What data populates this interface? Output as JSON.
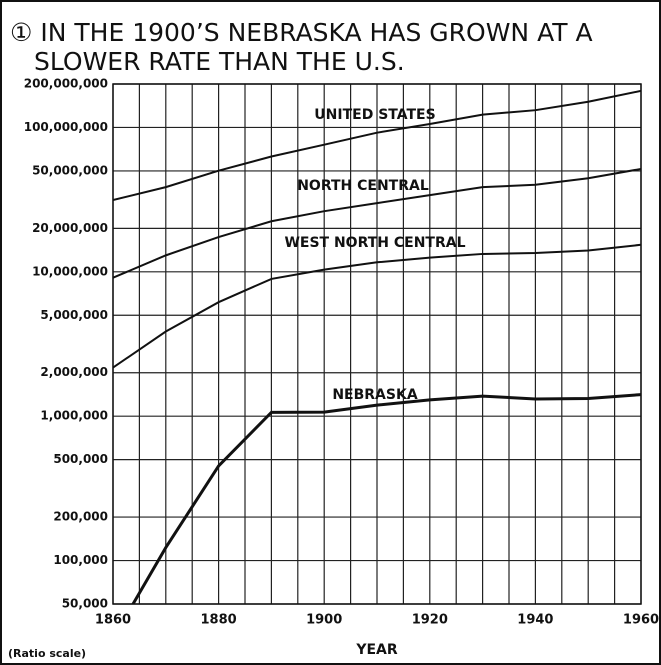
{
  "chart_data": {
    "type": "line",
    "title": [
      "① IN THE 1900’S NEBRASKA HAS GROWN AT A",
      "SLOWER RATE THAN THE U.S."
    ],
    "xlabel": "YEAR",
    "note": "(Ratio scale)",
    "log_y": true,
    "grid": true,
    "x": [
      1860,
      1870,
      1880,
      1890,
      1900,
      1910,
      1920,
      1930,
      1940,
      1950,
      1960
    ],
    "series": [
      {
        "name": "UNITED STATES",
        "color": "#111111",
        "values": [
          31400000,
          38600000,
          50200000,
          62900000,
          76000000,
          92000000,
          105700000,
          122800000,
          131700000,
          150700000,
          179300000
        ]
      },
      {
        "name": "NORTH CENTRAL",
        "color": "#111111",
        "values": [
          9100000,
          13000000,
          17400000,
          22400000,
          26300000,
          29900000,
          34000000,
          38600000,
          40100000,
          44500000,
          51600000
        ]
      },
      {
        "name": "WEST NORTH CENTRAL",
        "color": "#111111",
        "values": [
          2170000,
          3860000,
          6160000,
          8930000,
          10350000,
          11640000,
          12540000,
          13300000,
          13500000,
          14060000,
          15390000
        ]
      },
      {
        "name": "NEBRASKA",
        "color": "#111111",
        "values": [
          28841,
          122993,
          452402,
          1062656,
          1066300,
          1192214,
          1296372,
          1377963,
          1315834,
          1325510,
          1411330
        ]
      }
    ],
    "xlim": [
      1860,
      1960
    ],
    "xticks": [
      1860,
      1880,
      1900,
      1920,
      1940,
      1960
    ],
    "xgrid": [
      1860,
      1865,
      1870,
      1875,
      1880,
      1885,
      1890,
      1895,
      1900,
      1905,
      1910,
      1915,
      1920,
      1925,
      1930,
      1935,
      1940,
      1945,
      1950,
      1955,
      1960
    ],
    "ylim": [
      50000,
      200000000
    ],
    "yticks": [
      {
        "value": 50000,
        "label": "50,000"
      },
      {
        "value": 100000,
        "label": "100,000"
      },
      {
        "value": 200000,
        "label": "200,000"
      },
      {
        "value": 500000,
        "label": "500,000"
      },
      {
        "value": 1000000,
        "label": "1,000,000"
      },
      {
        "value": 2000000,
        "label": "2,000,000"
      },
      {
        "value": 5000000,
        "label": "5,000,000"
      },
      {
        "value": 10000000,
        "label": "10,000,000"
      },
      {
        "value": 20000000,
        "label": "20,000,000"
      },
      {
        "value": 50000000,
        "label": "50,000,000"
      },
      {
        "value": 100000000,
        "label": "100,000,000"
      },
      {
        "value": 200000000,
        "label": "200,000,000"
      }
    ]
  }
}
